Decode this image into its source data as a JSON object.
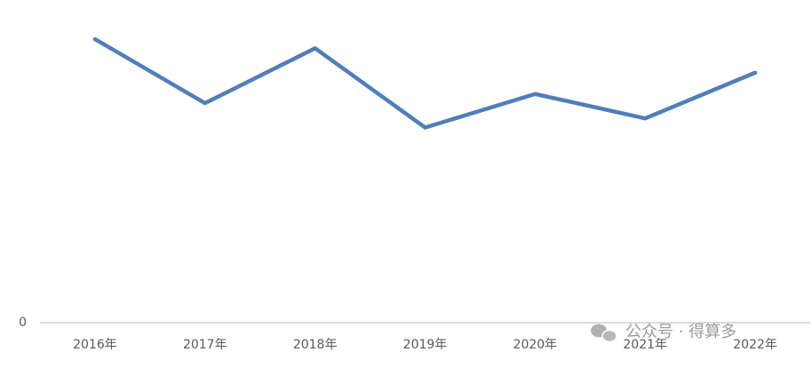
{
  "chart_data": {
    "type": "line",
    "categories": [
      "2016年",
      "2017年",
      "2018年",
      "2019年",
      "2020年",
      "2021年",
      "2022年"
    ],
    "series": [
      {
        "color": "#4f7fb9",
        "values": [
          93,
          72,
          90,
          64,
          75,
          67,
          82
        ]
      }
    ],
    "ylim": [
      0,
      100
    ],
    "yticks": [
      0
    ],
    "watermark": "公众号 · 得算多"
  }
}
